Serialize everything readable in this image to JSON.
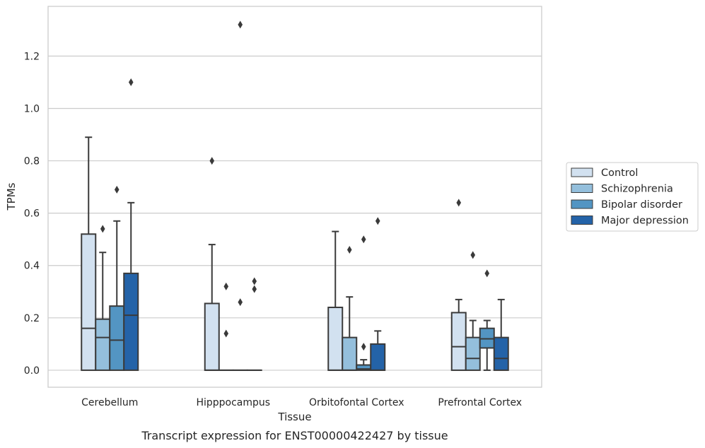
{
  "chart_data": {
    "type": "box",
    "caption": "Transcript expression for ENST00000422427 by tissue",
    "xlabel": "Tissue",
    "ylabel": "TPMs",
    "ylim": [
      -0.065,
      1.39
    ],
    "yticks": [
      0.0,
      0.2,
      0.4,
      0.6,
      0.8,
      1.0,
      1.2
    ],
    "grid": "horizontal",
    "legend_position": "right",
    "categories": [
      "Cerebellum",
      "Hipppocampus",
      "Orbitofontal Cortex",
      "Prefrontal Cortex"
    ],
    "series": [
      {
        "name": "Control",
        "color": "#d2e1f0",
        "boxes": [
          {
            "q1": 0.0,
            "median": 0.16,
            "q3": 0.52,
            "whisker_low": 0.0,
            "whisker_high": 0.89,
            "outliers": []
          },
          {
            "q1": 0.0,
            "median": 0.0,
            "q3": 0.255,
            "whisker_low": 0.0,
            "whisker_high": 0.48,
            "outliers": [
              0.8
            ]
          },
          {
            "q1": 0.0,
            "median": 0.0,
            "q3": 0.24,
            "whisker_low": 0.0,
            "whisker_high": 0.53,
            "outliers": []
          },
          {
            "q1": 0.0,
            "median": 0.09,
            "q3": 0.22,
            "whisker_low": 0.0,
            "whisker_high": 0.27,
            "outliers": [
              0.64
            ]
          }
        ]
      },
      {
        "name": "Schizophrenia",
        "color": "#94bfdc",
        "boxes": [
          {
            "q1": 0.0,
            "median": 0.125,
            "q3": 0.195,
            "whisker_low": 0.0,
            "whisker_high": 0.45,
            "outliers": [
              0.54
            ]
          },
          {
            "q1": 0.0,
            "median": 0.0,
            "q3": 0.0,
            "whisker_low": 0.0,
            "whisker_high": 0.0,
            "outliers": [
              0.14,
              0.32
            ]
          },
          {
            "q1": 0.0,
            "median": 0.0,
            "q3": 0.125,
            "whisker_low": 0.0,
            "whisker_high": 0.28,
            "outliers": [
              0.46
            ]
          },
          {
            "q1": 0.0,
            "median": 0.045,
            "q3": 0.125,
            "whisker_low": 0.0,
            "whisker_high": 0.19,
            "outliers": [
              0.44
            ]
          }
        ]
      },
      {
        "name": "Bipolar disorder",
        "color": "#5395c3",
        "boxes": [
          {
            "q1": 0.0,
            "median": 0.115,
            "q3": 0.245,
            "whisker_low": 0.0,
            "whisker_high": 0.57,
            "outliers": [
              0.69
            ]
          },
          {
            "q1": 0.0,
            "median": 0.0,
            "q3": 0.0,
            "whisker_low": 0.0,
            "whisker_high": 0.0,
            "outliers": [
              0.26,
              1.32
            ]
          },
          {
            "q1": 0.0,
            "median": 0.005,
            "q3": 0.02,
            "whisker_low": 0.0,
            "whisker_high": 0.04,
            "outliers": [
              0.09,
              0.5
            ]
          },
          {
            "q1": 0.085,
            "median": 0.12,
            "q3": 0.16,
            "whisker_low": 0.0,
            "whisker_high": 0.19,
            "outliers": [
              0.37
            ]
          }
        ]
      },
      {
        "name": "Major depression",
        "color": "#2463a8",
        "boxes": [
          {
            "q1": 0.0,
            "median": 0.21,
            "q3": 0.37,
            "whisker_low": 0.0,
            "whisker_high": 0.64,
            "outliers": [
              1.1
            ]
          },
          {
            "q1": 0.0,
            "median": 0.0,
            "q3": 0.0,
            "whisker_low": 0.0,
            "whisker_high": 0.0,
            "outliers": [
              0.31,
              0.34
            ]
          },
          {
            "q1": 0.0,
            "median": 0.0,
            "q3": 0.1,
            "whisker_low": 0.0,
            "whisker_high": 0.15,
            "outliers": [
              0.57
            ]
          },
          {
            "q1": 0.0,
            "median": 0.045,
            "q3": 0.125,
            "whisker_low": 0.0,
            "whisker_high": 0.27,
            "outliers": []
          }
        ]
      }
    ]
  }
}
